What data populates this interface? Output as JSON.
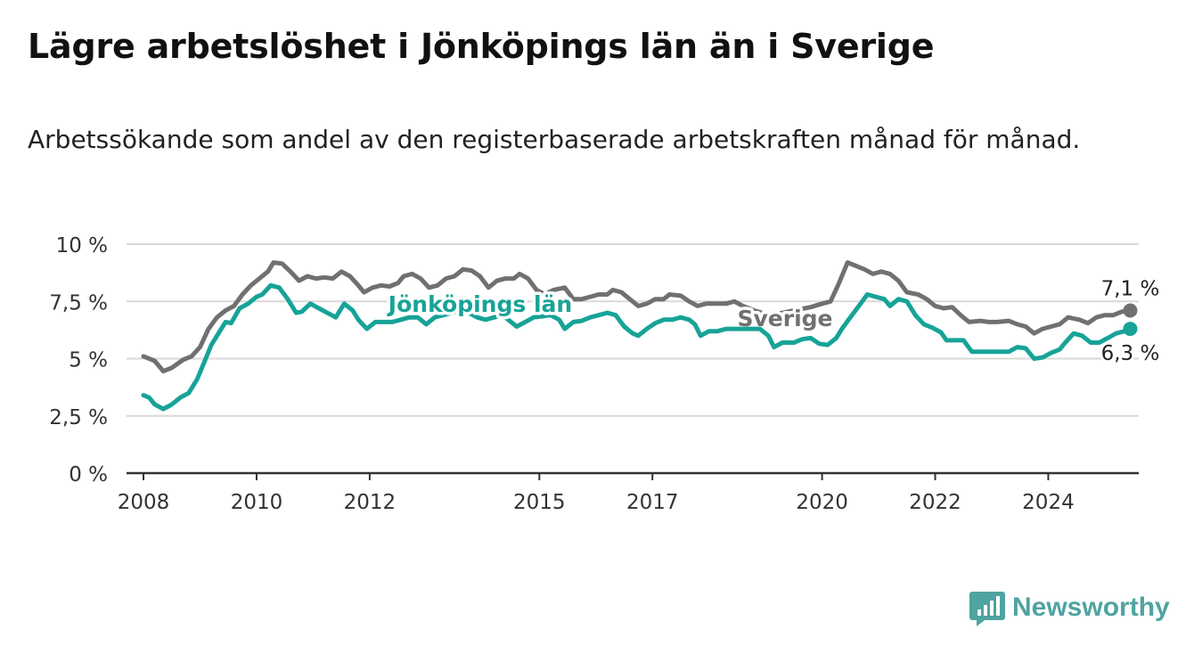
{
  "header": {
    "title": "Lägre arbetslöshet i Jönköpings län än i Sverige",
    "subtitle": "Arbetssökande som andel av den registerbaserade arbetskraften månad för månad."
  },
  "brand": {
    "name": "Newsworthy",
    "icon": "bar-chart-logo-icon",
    "color": "#4fa3a0"
  },
  "colors": {
    "sverige": "#707070",
    "jonkoping": "#17a398",
    "grid": "#d9d9d9",
    "axis": "#333333"
  },
  "chart_data": {
    "type": "line",
    "x_unit": "year",
    "xlim": [
      2007.7,
      2025.6
    ],
    "ylim": [
      0,
      10
    ],
    "y_ticks": [
      0,
      2.5,
      5,
      7.5,
      10
    ],
    "y_tick_labels": [
      "0 %",
      "2,5 %",
      "5 %",
      "7,5 %",
      "10 %"
    ],
    "x_ticks": [
      2008,
      2010,
      2012,
      2015,
      2017,
      2020,
      2022,
      2024
    ],
    "x_tick_labels": [
      "2008",
      "2010",
      "2012",
      "2015",
      "2017",
      "2020",
      "2022",
      "2024"
    ],
    "grid": "horizontal",
    "series": [
      {
        "name": "Sverige",
        "color": "#707070",
        "last_value_label": "7,1 %",
        "points": [
          [
            2008.0,
            5.1
          ],
          [
            2008.2,
            4.9
          ],
          [
            2008.35,
            4.45
          ],
          [
            2008.5,
            4.6
          ],
          [
            2008.7,
            4.95
          ],
          [
            2008.85,
            5.1
          ],
          [
            2009.0,
            5.5
          ],
          [
            2009.15,
            6.3
          ],
          [
            2009.3,
            6.8
          ],
          [
            2009.45,
            7.1
          ],
          [
            2009.6,
            7.3
          ],
          [
            2009.75,
            7.8
          ],
          [
            2009.9,
            8.2
          ],
          [
            2010.05,
            8.5
          ],
          [
            2010.2,
            8.8
          ],
          [
            2010.3,
            9.2
          ],
          [
            2010.45,
            9.15
          ],
          [
            2010.6,
            8.8
          ],
          [
            2010.75,
            8.4
          ],
          [
            2010.9,
            8.6
          ],
          [
            2011.05,
            8.5
          ],
          [
            2011.2,
            8.55
          ],
          [
            2011.35,
            8.5
          ],
          [
            2011.5,
            8.8
          ],
          [
            2011.65,
            8.6
          ],
          [
            2011.8,
            8.2
          ],
          [
            2011.9,
            7.9
          ],
          [
            2012.05,
            8.1
          ],
          [
            2012.2,
            8.2
          ],
          [
            2012.35,
            8.15
          ],
          [
            2012.5,
            8.3
          ],
          [
            2012.6,
            8.6
          ],
          [
            2012.75,
            8.7
          ],
          [
            2012.9,
            8.5
          ],
          [
            2013.05,
            8.1
          ],
          [
            2013.2,
            8.2
          ],
          [
            2013.35,
            8.5
          ],
          [
            2013.5,
            8.6
          ],
          [
            2013.65,
            8.9
          ],
          [
            2013.8,
            8.85
          ],
          [
            2013.95,
            8.6
          ],
          [
            2014.1,
            8.1
          ],
          [
            2014.25,
            8.4
          ],
          [
            2014.4,
            8.5
          ],
          [
            2014.55,
            8.5
          ],
          [
            2014.65,
            8.7
          ],
          [
            2014.8,
            8.5
          ],
          [
            2014.95,
            8.0
          ],
          [
            2015.1,
            7.8
          ],
          [
            2015.25,
            8.0
          ],
          [
            2015.45,
            8.1
          ],
          [
            2015.6,
            7.6
          ],
          [
            2015.75,
            7.6
          ],
          [
            2015.9,
            7.7
          ],
          [
            2016.05,
            7.8
          ],
          [
            2016.2,
            7.8
          ],
          [
            2016.3,
            8.0
          ],
          [
            2016.45,
            7.9
          ],
          [
            2016.6,
            7.6
          ],
          [
            2016.75,
            7.3
          ],
          [
            2016.9,
            7.4
          ],
          [
            2017.05,
            7.6
          ],
          [
            2017.2,
            7.6
          ],
          [
            2017.3,
            7.8
          ],
          [
            2017.5,
            7.75
          ],
          [
            2017.65,
            7.5
          ],
          [
            2017.8,
            7.3
          ],
          [
            2017.95,
            7.4
          ],
          [
            2018.1,
            7.4
          ],
          [
            2018.3,
            7.4
          ],
          [
            2018.45,
            7.5
          ],
          [
            2018.6,
            7.3
          ],
          [
            2018.8,
            7.1
          ],
          [
            2019.0,
            6.95
          ],
          [
            2019.2,
            6.95
          ],
          [
            2019.4,
            7.05
          ],
          [
            2019.6,
            7.15
          ],
          [
            2019.8,
            7.25
          ],
          [
            2020.0,
            7.4
          ],
          [
            2020.15,
            7.5
          ],
          [
            2020.3,
            8.3
          ],
          [
            2020.45,
            9.2
          ],
          [
            2020.6,
            9.05
          ],
          [
            2020.75,
            8.9
          ],
          [
            2020.9,
            8.7
          ],
          [
            2021.05,
            8.8
          ],
          [
            2021.2,
            8.7
          ],
          [
            2021.35,
            8.4
          ],
          [
            2021.5,
            7.9
          ],
          [
            2021.7,
            7.8
          ],
          [
            2021.85,
            7.6
          ],
          [
            2022.0,
            7.3
          ],
          [
            2022.15,
            7.2
          ],
          [
            2022.3,
            7.25
          ],
          [
            2022.45,
            6.9
          ],
          [
            2022.6,
            6.6
          ],
          [
            2022.8,
            6.65
          ],
          [
            2022.95,
            6.6
          ],
          [
            2023.1,
            6.6
          ],
          [
            2023.3,
            6.65
          ],
          [
            2023.45,
            6.5
          ],
          [
            2023.6,
            6.4
          ],
          [
            2023.75,
            6.1
          ],
          [
            2023.9,
            6.3
          ],
          [
            2024.05,
            6.4
          ],
          [
            2024.2,
            6.5
          ],
          [
            2024.35,
            6.8
          ],
          [
            2024.55,
            6.7
          ],
          [
            2024.7,
            6.55
          ],
          [
            2024.85,
            6.8
          ],
          [
            2025.0,
            6.9
          ],
          [
            2025.15,
            6.9
          ],
          [
            2025.3,
            7.05
          ],
          [
            2025.45,
            7.1
          ]
        ]
      },
      {
        "name": "Jönköpings län",
        "color": "#17a398",
        "last_value_label": "6,3 %",
        "points": [
          [
            2008.0,
            3.4
          ],
          [
            2008.1,
            3.3
          ],
          [
            2008.2,
            3.0
          ],
          [
            2008.35,
            2.8
          ],
          [
            2008.5,
            3.0
          ],
          [
            2008.65,
            3.3
          ],
          [
            2008.8,
            3.5
          ],
          [
            2008.95,
            4.1
          ],
          [
            2009.05,
            4.7
          ],
          [
            2009.2,
            5.6
          ],
          [
            2009.35,
            6.2
          ],
          [
            2009.45,
            6.6
          ],
          [
            2009.55,
            6.55
          ],
          [
            2009.7,
            7.2
          ],
          [
            2009.85,
            7.4
          ],
          [
            2010.0,
            7.7
          ],
          [
            2010.1,
            7.8
          ],
          [
            2010.25,
            8.2
          ],
          [
            2010.4,
            8.1
          ],
          [
            2010.55,
            7.6
          ],
          [
            2010.7,
            7.0
          ],
          [
            2010.8,
            7.05
          ],
          [
            2010.95,
            7.4
          ],
          [
            2011.1,
            7.2
          ],
          [
            2011.25,
            7.0
          ],
          [
            2011.4,
            6.8
          ],
          [
            2011.55,
            7.4
          ],
          [
            2011.7,
            7.1
          ],
          [
            2011.8,
            6.7
          ],
          [
            2011.95,
            6.3
          ],
          [
            2012.1,
            6.6
          ],
          [
            2012.25,
            6.6
          ],
          [
            2012.4,
            6.6
          ],
          [
            2012.55,
            6.7
          ],
          [
            2012.7,
            6.8
          ],
          [
            2012.85,
            6.8
          ],
          [
            2013.0,
            6.5
          ],
          [
            2013.15,
            6.8
          ],
          [
            2013.3,
            6.9
          ],
          [
            2013.45,
            7.0
          ],
          [
            2013.6,
            7.1
          ],
          [
            2013.75,
            7.0
          ],
          [
            2013.9,
            6.8
          ],
          [
            2014.05,
            6.7
          ],
          [
            2014.2,
            6.8
          ],
          [
            2014.35,
            6.9
          ],
          [
            2014.5,
            6.6
          ],
          [
            2014.6,
            6.4
          ],
          [
            2014.75,
            6.6
          ],
          [
            2014.9,
            6.8
          ],
          [
            2015.05,
            6.85
          ],
          [
            2015.2,
            6.9
          ],
          [
            2015.35,
            6.7
          ],
          [
            2015.45,
            6.3
          ],
          [
            2015.6,
            6.6
          ],
          [
            2015.75,
            6.65
          ],
          [
            2015.9,
            6.8
          ],
          [
            2016.05,
            6.9
          ],
          [
            2016.2,
            7.0
          ],
          [
            2016.35,
            6.9
          ],
          [
            2016.5,
            6.4
          ],
          [
            2016.65,
            6.1
          ],
          [
            2016.75,
            6.0
          ],
          [
            2016.9,
            6.3
          ],
          [
            2017.05,
            6.55
          ],
          [
            2017.2,
            6.7
          ],
          [
            2017.35,
            6.7
          ],
          [
            2017.5,
            6.8
          ],
          [
            2017.65,
            6.7
          ],
          [
            2017.75,
            6.5
          ],
          [
            2017.85,
            6.0
          ],
          [
            2018.0,
            6.2
          ],
          [
            2018.15,
            6.2
          ],
          [
            2018.3,
            6.3
          ],
          [
            2018.45,
            6.3
          ],
          [
            2018.6,
            6.3
          ],
          [
            2018.75,
            6.3
          ],
          [
            2018.9,
            6.3
          ],
          [
            2019.05,
            6.0
          ],
          [
            2019.15,
            5.5
          ],
          [
            2019.3,
            5.7
          ],
          [
            2019.5,
            5.7
          ],
          [
            2019.65,
            5.85
          ],
          [
            2019.8,
            5.9
          ],
          [
            2019.95,
            5.65
          ],
          [
            2020.1,
            5.6
          ],
          [
            2020.25,
            5.9
          ],
          [
            2020.35,
            6.3
          ],
          [
            2020.5,
            6.8
          ],
          [
            2020.65,
            7.3
          ],
          [
            2020.8,
            7.8
          ],
          [
            2020.95,
            7.7
          ],
          [
            2021.1,
            7.6
          ],
          [
            2021.2,
            7.3
          ],
          [
            2021.35,
            7.6
          ],
          [
            2021.5,
            7.5
          ],
          [
            2021.65,
            6.9
          ],
          [
            2021.8,
            6.5
          ],
          [
            2021.95,
            6.35
          ],
          [
            2022.1,
            6.15
          ],
          [
            2022.2,
            5.8
          ],
          [
            2022.35,
            5.8
          ],
          [
            2022.5,
            5.8
          ],
          [
            2022.65,
            5.3
          ],
          [
            2022.8,
            5.3
          ],
          [
            2022.95,
            5.3
          ],
          [
            2023.1,
            5.3
          ],
          [
            2023.3,
            5.3
          ],
          [
            2023.45,
            5.5
          ],
          [
            2023.6,
            5.45
          ],
          [
            2023.75,
            5.0
          ],
          [
            2023.9,
            5.05
          ],
          [
            2024.05,
            5.25
          ],
          [
            2024.2,
            5.4
          ],
          [
            2024.3,
            5.7
          ],
          [
            2024.45,
            6.1
          ],
          [
            2024.6,
            6.0
          ],
          [
            2024.75,
            5.7
          ],
          [
            2024.9,
            5.7
          ],
          [
            2025.05,
            5.9
          ],
          [
            2025.2,
            6.1
          ],
          [
            2025.35,
            6.2
          ],
          [
            2025.45,
            6.3
          ]
        ]
      }
    ]
  }
}
